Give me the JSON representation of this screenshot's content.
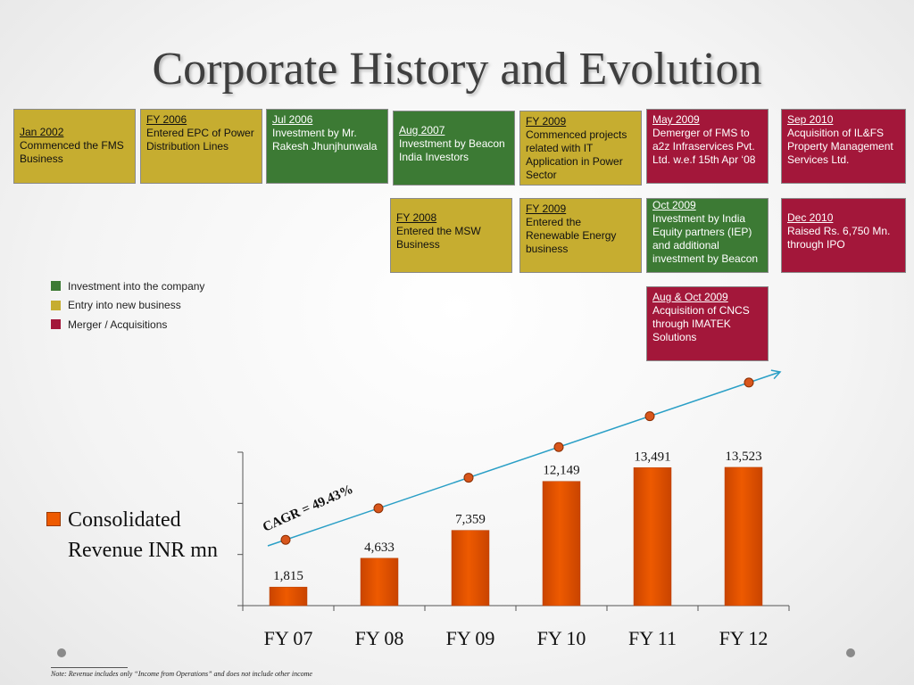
{
  "slide": {
    "title": "Corporate History and Evolution",
    "note": "Note: Revenue includes only “Income from Operations” and does not include other income"
  },
  "colors": {
    "investment": "#3c7a34",
    "entry": "#c6ad30",
    "merger": "#a3173a",
    "bar": "#ee5a00",
    "trend": "#2a9fc6",
    "trend_marker": "#d8561c"
  },
  "milestones": [
    {
      "date": "Jan 2002",
      "text": " Commenced the FMS Business",
      "category": "entry"
    },
    {
      "date": "FY 2006",
      "text": "Entered EPC of Power Distribution Lines",
      "category": "entry"
    },
    {
      "date": "Jul 2006",
      "text": "Investment by Mr. Rakesh Jhunjhunwala",
      "category": "investment"
    },
    {
      "date": "Aug 2007",
      "text": "Investment by Beacon India Investors",
      "category": "investment"
    },
    {
      "date": "FY 2009",
      "text": "Commenced projects related with IT Application in Power Sector",
      "category": "entry"
    },
    {
      "date": "May 2009",
      "text": "Demerger of FMS to a2z Infraservices Pvt. Ltd. w.e.f 15th Apr ‘08",
      "category": "merger"
    },
    {
      "date": "Sep 2010",
      "text": "Acquisition of IL&FS Property Management Services Ltd.",
      "category": "merger"
    },
    {
      "date": "FY 2008",
      "text": "Entered the MSW Business",
      "category": "entry"
    },
    {
      "date": "FY 2009",
      "text": "Entered the Renewable Energy business",
      "category": "entry"
    },
    {
      "date": "Oct 2009",
      "text": "Investment by India Equity partners (IEP) and additional investment by Beacon",
      "category": "investment"
    },
    {
      "date": "Dec 2010",
      "text": "Raised Rs. 6,750 Mn. through IPO",
      "category": "merger"
    },
    {
      "date": "Aug & Oct 2009",
      "text": "Acquisition of CNCS through IMATEK Solutions",
      "category": "merger"
    }
  ],
  "legend": {
    "items": [
      {
        "label": "Investment into the company",
        "category": "investment"
      },
      {
        "label": "Entry into new business",
        "category": "entry"
      },
      {
        "label": "Merger / Acquisitions",
        "category": "merger"
      }
    ]
  },
  "chart_data": {
    "type": "bar",
    "categories": [
      "FY 07",
      "FY 08",
      "FY 09",
      "FY 10",
      "FY 11",
      "FY 12"
    ],
    "series": [
      {
        "name": "Consolidated Revenue INR mn",
        "values": [
          1815,
          4633,
          7359,
          12149,
          13491,
          13523
        ]
      }
    ],
    "data_labels": [
      "1,815",
      "4,633",
      "7,359",
      "12,149",
      "13,491",
      "13,523"
    ],
    "ylim": [
      0,
      15000
    ],
    "grid": false,
    "legend_position": "left",
    "annotation": "CAGR = 49.43%"
  }
}
